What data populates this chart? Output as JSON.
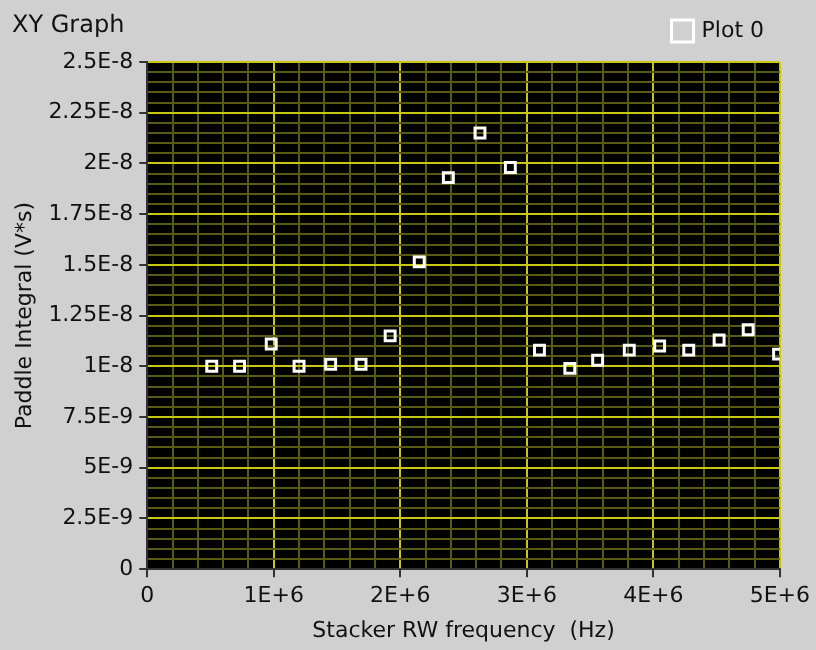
{
  "chart_data": {
    "type": "scatter",
    "title": "XY Graph",
    "xlabel": "Stacker RW frequency  (Hz)",
    "ylabel": "Paddle Integral (V*s)",
    "xlim": [
      0,
      5000000
    ],
    "ylim": [
      0,
      2.5e-08
    ],
    "xticks": [
      0,
      {
        "value": 200000,
        "label": null
      },
      {
        "value": 400000,
        "label": null
      },
      {
        "value": 600000,
        "label": null
      },
      {
        "value": 800000,
        "label": null
      },
      {
        "value": 1000000,
        "label": "1E+6"
      },
      {
        "value": 1200000,
        "label": null
      },
      {
        "value": 1400000,
        "label": null
      },
      {
        "value": 1600000,
        "label": null
      },
      {
        "value": 1800000,
        "label": null
      },
      {
        "value": 2000000,
        "label": "2E+6"
      },
      {
        "value": 2200000,
        "label": null
      },
      {
        "value": 2400000,
        "label": null
      },
      {
        "value": 2600000,
        "label": null
      },
      {
        "value": 2800000,
        "label": null
      },
      {
        "value": 3000000,
        "label": "3E+6"
      },
      {
        "value": 3200000,
        "label": null
      },
      {
        "value": 3400000,
        "label": null
      },
      {
        "value": 3600000,
        "label": null
      },
      {
        "value": 3800000,
        "label": null
      },
      {
        "value": 4000000,
        "label": "4E+6"
      },
      {
        "value": 4200000,
        "label": null
      },
      {
        "value": 4400000,
        "label": null
      },
      {
        "value": 4600000,
        "label": null
      },
      {
        "value": 4800000,
        "label": null
      },
      {
        "value": 5000000,
        "label": "5E+6"
      }
    ],
    "yticks": [
      0,
      {
        "value": 5e-10,
        "label": null
      },
      {
        "value": 1e-09,
        "label": null
      },
      {
        "value": 1.5e-09,
        "label": null
      },
      {
        "value": 2e-09,
        "label": null
      },
      {
        "value": 2.5e-09,
        "label": "2.5E-9"
      },
      {
        "value": 3e-09,
        "label": null
      },
      {
        "value": 3.5e-09,
        "label": null
      },
      {
        "value": 4e-09,
        "label": null
      },
      {
        "value": 4.5e-09,
        "label": null
      },
      {
        "value": 5e-09,
        "label": "5E-9"
      },
      {
        "value": 5.5e-09,
        "label": null
      },
      {
        "value": 6e-09,
        "label": null
      },
      {
        "value": 6.5e-09,
        "label": null
      },
      {
        "value": 7e-09,
        "label": null
      },
      {
        "value": 7.5e-09,
        "label": "7.5E-9"
      },
      {
        "value": 8e-09,
        "label": null
      },
      {
        "value": 8.5e-09,
        "label": null
      },
      {
        "value": 9e-09,
        "label": null
      },
      {
        "value": 9.5e-09,
        "label": null
      },
      {
        "value": 1e-08,
        "label": "1E-8"
      },
      {
        "value": 1.05e-08,
        "label": null
      },
      {
        "value": 1.1e-08,
        "label": null
      },
      {
        "value": 1.15e-08,
        "label": null
      },
      {
        "value": 1.2e-08,
        "label": null
      },
      {
        "value": 1.25e-08,
        "label": "1.25E-8"
      },
      {
        "value": 1.3e-08,
        "label": null
      },
      {
        "value": 1.35e-08,
        "label": null
      },
      {
        "value": 1.4e-08,
        "label": null
      },
      {
        "value": 1.45e-08,
        "label": null
      },
      {
        "value": 1.5e-08,
        "label": "1.5E-8"
      },
      {
        "value": 1.55e-08,
        "label": null
      },
      {
        "value": 1.6e-08,
        "label": null
      },
      {
        "value": 1.65e-08,
        "label": null
      },
      {
        "value": 1.7e-08,
        "label": null
      },
      {
        "value": 1.75e-08,
        "label": "1.75E-8"
      },
      {
        "value": 1.8e-08,
        "label": null
      },
      {
        "value": 1.85e-08,
        "label": null
      },
      {
        "value": 1.9e-08,
        "label": null
      },
      {
        "value": 1.95e-08,
        "label": null
      },
      {
        "value": 2e-08,
        "label": "2E-8"
      },
      {
        "value": 2.05e-08,
        "label": null
      },
      {
        "value": 2.1e-08,
        "label": null
      },
      {
        "value": 2.15e-08,
        "label": null
      },
      {
        "value": 2.2e-08,
        "label": null
      },
      {
        "value": 2.25e-08,
        "label": "2.25E-8"
      },
      {
        "value": 2.3e-08,
        "label": null
      },
      {
        "value": 2.35e-08,
        "label": null
      },
      {
        "value": 2.4e-08,
        "label": null
      },
      {
        "value": 2.45e-08,
        "label": null
      },
      {
        "value": 2.5e-08,
        "label": "2.5E-8"
      }
    ],
    "x": [
      510000,
      730000,
      980000,
      1200000,
      1450000,
      1690000,
      1920000,
      2150000,
      2380000,
      2630000,
      2870000,
      3100000,
      3340000,
      3560000,
      3810000,
      4050000,
      4280000,
      4520000,
      4750000,
      4990000
    ],
    "series": [
      {
        "name": "Plot 0",
        "color": "#ffffff",
        "values": [
          1e-08,
          1e-08,
          1.11e-08,
          1e-08,
          1.01e-08,
          1.01e-08,
          1.15e-08,
          1.515e-08,
          1.93e-08,
          2.15e-08,
          1.98e-08,
          1.08e-08,
          9.9e-09,
          1.03e-08,
          1.08e-08,
          1.1e-08,
          1.08e-08,
          1.13e-08,
          1.18e-08,
          1.06e-08
        ]
      }
    ],
    "grid": true,
    "legend": "top right",
    "marker": "square"
  }
}
